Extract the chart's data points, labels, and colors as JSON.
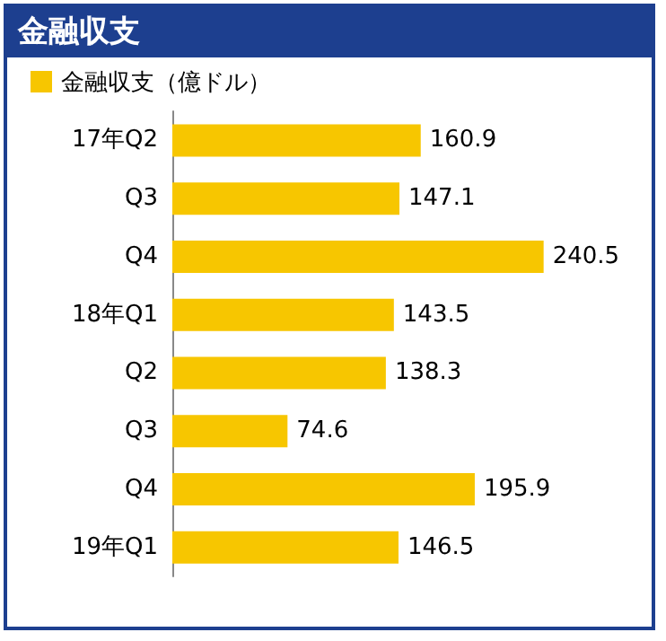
{
  "chart_data": {
    "type": "bar",
    "title": "金融収支",
    "orientation": "horizontal",
    "categories": [
      "17年Q2",
      "Q3",
      "Q4",
      "18年Q1",
      "Q2",
      "Q3",
      "Q4",
      "19年Q1"
    ],
    "series": [
      {
        "name": "金融収支（億ドル）",
        "color": "#f7c600",
        "values": [
          160.9,
          147.1,
          240.5,
          143.5,
          138.3,
          74.6,
          195.9,
          146.5
        ]
      }
    ],
    "data_labels": true,
    "legend": "top left",
    "grid": false
  }
}
